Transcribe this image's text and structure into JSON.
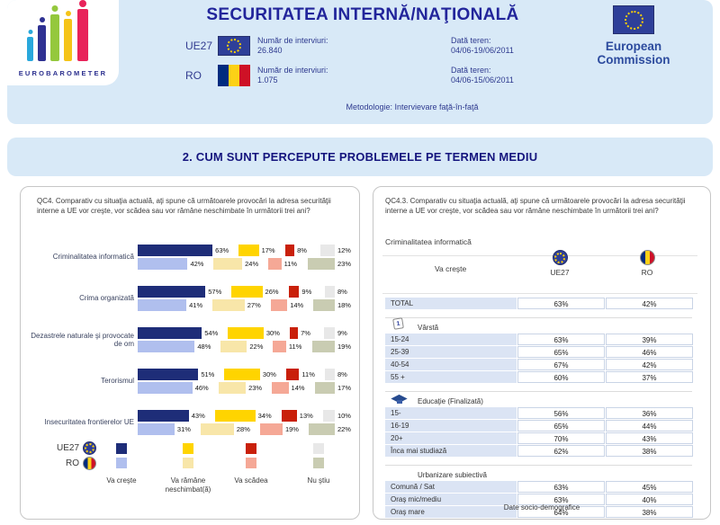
{
  "colors": {
    "header_bg": "#d8e9f7",
    "title_text": "#22259b",
    "eu_flag_blue": "#2e3f99",
    "eu_star_yellow": "#ffd200",
    "ro_flag": [
      "#002b7f",
      "#fcd116",
      "#ce1126"
    ],
    "table_label_bg": "#dbe4f4"
  },
  "header": {
    "logo_text": "EUROBAROMETER",
    "logo_colors": [
      "#29a8dc",
      "#2e3192",
      "#94c83d",
      "#f5c418",
      "#e8235a"
    ],
    "title": "SECURITATEA INTERNĂ/NAŢIONALĂ",
    "rows": [
      {
        "label": "UE27",
        "interviews_label": "Număr de interviuri:",
        "interviews": "26.840",
        "date_label": "Dată teren:",
        "date": "04/06-19/06/2011"
      },
      {
        "label": "RO",
        "interviews_label": "Număr de interviuri:",
        "interviews": "1.075",
        "date_label": "Dată teren:",
        "date": "04/06-15/06/2011"
      }
    ],
    "methodology": "Metodologie: Intervievare faţă-în-faţă",
    "ec_line1": "European",
    "ec_line2": "Commission"
  },
  "section_title": "2. CUM SUNT PERCEPUTE PROBLEMELE PE TERMEN MEDIU",
  "left_panel": {
    "question": "QC4. Comparativ cu situaţia actuală, aţi spune că următoarele provocări la adresa securităţii interne a UE vor creşte, vor scădea sau vor rămâne neschimbate în următorii trei ani?"
  },
  "right_panel": {
    "question": "QC4.3. Comparativ cu situaţia actuală, aţi spune că următoarele provocări la adresa securităţii interne a UE vor creşte, vor scădea sau vor rămâne neschimbate în următorii trei ani?",
    "subtitle": "Criminalitatea informatică",
    "measure_label": "Va creşte",
    "columns": [
      "UE27",
      "RO"
    ],
    "footer": "Date socio-demografice"
  },
  "chart_data": [
    {
      "type": "bar",
      "orientation": "horizontal",
      "title": "QC4. Comparativ cu situaţia actuală, aţi spune că următoarele provocări la adresa securităţii interne a UE vor creşte, vor scădea sau vor rămâne neschimbate în următorii trei ani?",
      "unit": "%",
      "categories": [
        "Criminalitatea informatică",
        "Crima organizată",
        "Dezastrele naturale şi provocate de om",
        "Terorismul",
        "Insecuritatea frontierelor UE"
      ],
      "response_options": [
        "Va creşte",
        "Va rămâne neschimbat(ă)",
        "Va scădea",
        "Nu ştiu"
      ],
      "series": [
        {
          "name": "UE27",
          "values": [
            [
              63,
              17,
              8,
              12
            ],
            [
              57,
              26,
              9,
              8
            ],
            [
              54,
              30,
              7,
              9
            ],
            [
              51,
              30,
              11,
              8
            ],
            [
              43,
              34,
              13,
              10
            ]
          ]
        },
        {
          "name": "RO",
          "values": [
            [
              42,
              24,
              11,
              23
            ],
            [
              41,
              27,
              14,
              18
            ],
            [
              48,
              22,
              11,
              19
            ],
            [
              46,
              23,
              14,
              17
            ],
            [
              31,
              28,
              19,
              22
            ]
          ]
        }
      ],
      "palette": [
        [
          "#1e2d78",
          "#ffd400",
          "#c9200a",
          "#e8e8e8"
        ],
        [
          "#b0bfee",
          "#f8e6a9",
          "#f5a896",
          "#c9ccb2"
        ]
      ],
      "legend_position": "bottom"
    },
    {
      "type": "table",
      "title": "QC4.3 — Criminalitatea informatică — Va creşte",
      "columns": [
        "UE27",
        "RO"
      ],
      "total": {
        "label": "TOTAL",
        "values": [
          "63%",
          "42%"
        ]
      },
      "groups": [
        {
          "header": "Vârstă",
          "icon": "calendar-icon",
          "rows": [
            {
              "label": "15-24",
              "values": [
                "63%",
                "39%"
              ]
            },
            {
              "label": "25-39",
              "values": [
                "65%",
                "46%"
              ]
            },
            {
              "label": "40-54",
              "values": [
                "67%",
                "42%"
              ]
            },
            {
              "label": "55 +",
              "values": [
                "60%",
                "37%"
              ]
            }
          ]
        },
        {
          "header": "Educaţie (Finalizată)",
          "icon": "graduation-cap-icon",
          "rows": [
            {
              "label": "15-",
              "values": [
                "56%",
                "36%"
              ]
            },
            {
              "label": "16-19",
              "values": [
                "65%",
                "44%"
              ]
            },
            {
              "label": "20+",
              "values": [
                "70%",
                "43%"
              ]
            },
            {
              "label": "Înca mai studiază",
              "values": [
                "62%",
                "38%"
              ]
            }
          ]
        },
        {
          "header": "Urbanizare subiectivă",
          "icon": "",
          "rows": [
            {
              "label": "Comună / Sat",
              "values": [
                "63%",
                "45%"
              ]
            },
            {
              "label": "Oraş mic/mediu",
              "values": [
                "63%",
                "40%"
              ]
            },
            {
              "label": "Oraş mare",
              "values": [
                "64%",
                "38%"
              ]
            }
          ]
        }
      ]
    }
  ]
}
